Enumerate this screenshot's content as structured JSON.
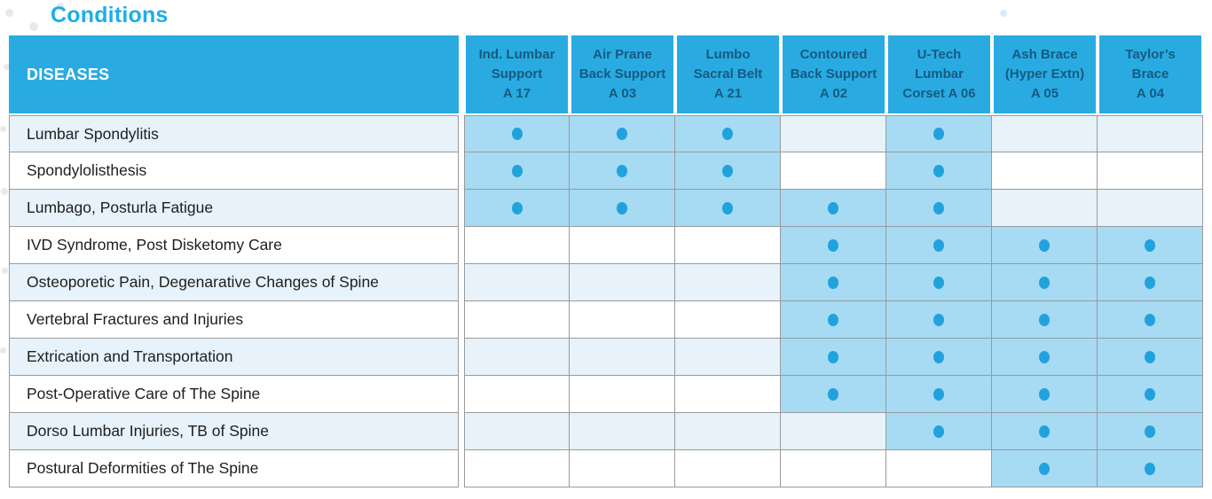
{
  "title": "Conditions",
  "table": {
    "diseases_header": "DISEASES",
    "columns": [
      {
        "name": "Ind. Lumbar Support",
        "code": "A 17",
        "lines": [
          "Ind. Lumbar",
          "Support",
          "A 17"
        ]
      },
      {
        "name": "Air Prane Back Support",
        "code": "A 03",
        "lines": [
          "Air Prane",
          "Back Support",
          "A 03"
        ]
      },
      {
        "name": "Lumbo Sacral Belt",
        "code": "A 21",
        "lines": [
          "Lumbo",
          "Sacral Belt",
          "A 21"
        ]
      },
      {
        "name": "Contoured Back Support",
        "code": "A 02",
        "lines": [
          "Contoured",
          "Back Support",
          "A 02"
        ]
      },
      {
        "name": "U-Tech Lumbar Corset",
        "code": "A 06",
        "lines": [
          "U-Tech",
          "Lumbar",
          "Corset A 06"
        ]
      },
      {
        "name": "Ash Brace (Hyper Extn)",
        "code": "A 05",
        "lines": [
          "Ash Brace",
          "(Hyper Extn)",
          "A 05"
        ]
      },
      {
        "name": "Taylor’s Brace",
        "code": "A 04",
        "lines": [
          "Taylor’s",
          "Brace",
          "A 04"
        ]
      }
    ],
    "rows": [
      {
        "name": "Lumbar Spondylitis",
        "marks": [
          1,
          1,
          1,
          0,
          1,
          0,
          0
        ]
      },
      {
        "name": "Spondylolisthesis",
        "marks": [
          1,
          1,
          1,
          0,
          1,
          0,
          0
        ]
      },
      {
        "name": "Lumbago, Posturla Fatigue",
        "marks": [
          1,
          1,
          1,
          1,
          1,
          0,
          0
        ]
      },
      {
        "name": "IVD Syndrome, Post Disketomy Care",
        "marks": [
          0,
          0,
          0,
          1,
          1,
          1,
          1
        ]
      },
      {
        "name": "Osteoporetic Pain, Degenarative Changes of Spine",
        "marks": [
          0,
          0,
          0,
          1,
          1,
          1,
          1
        ]
      },
      {
        "name": "Vertebral Fractures and Injuries",
        "marks": [
          0,
          0,
          0,
          1,
          1,
          1,
          1
        ]
      },
      {
        "name": "Extrication and Transportation",
        "marks": [
          0,
          0,
          0,
          1,
          1,
          1,
          1
        ]
      },
      {
        "name": "Post-Operative Care of The Spine",
        "marks": [
          0,
          0,
          0,
          1,
          1,
          1,
          1
        ]
      },
      {
        "name": "Dorso Lumbar Injuries, TB of Spine",
        "marks": [
          0,
          0,
          0,
          0,
          1,
          1,
          1
        ]
      },
      {
        "name": "Postural Deformities of The Spine",
        "marks": [
          0,
          0,
          0,
          0,
          0,
          1,
          1
        ]
      }
    ]
  },
  "colors": {
    "title": "#1caee8",
    "header_bg": "#29abe2",
    "header_text": "#ffffff",
    "column_header_text": "#175a80",
    "mark_cell_bg": "#a7daf3",
    "dot": "#21a2dd",
    "stripe": "#e7f2fb",
    "grid": "#9a9a9a",
    "disease_text": "#1e1e1e"
  }
}
